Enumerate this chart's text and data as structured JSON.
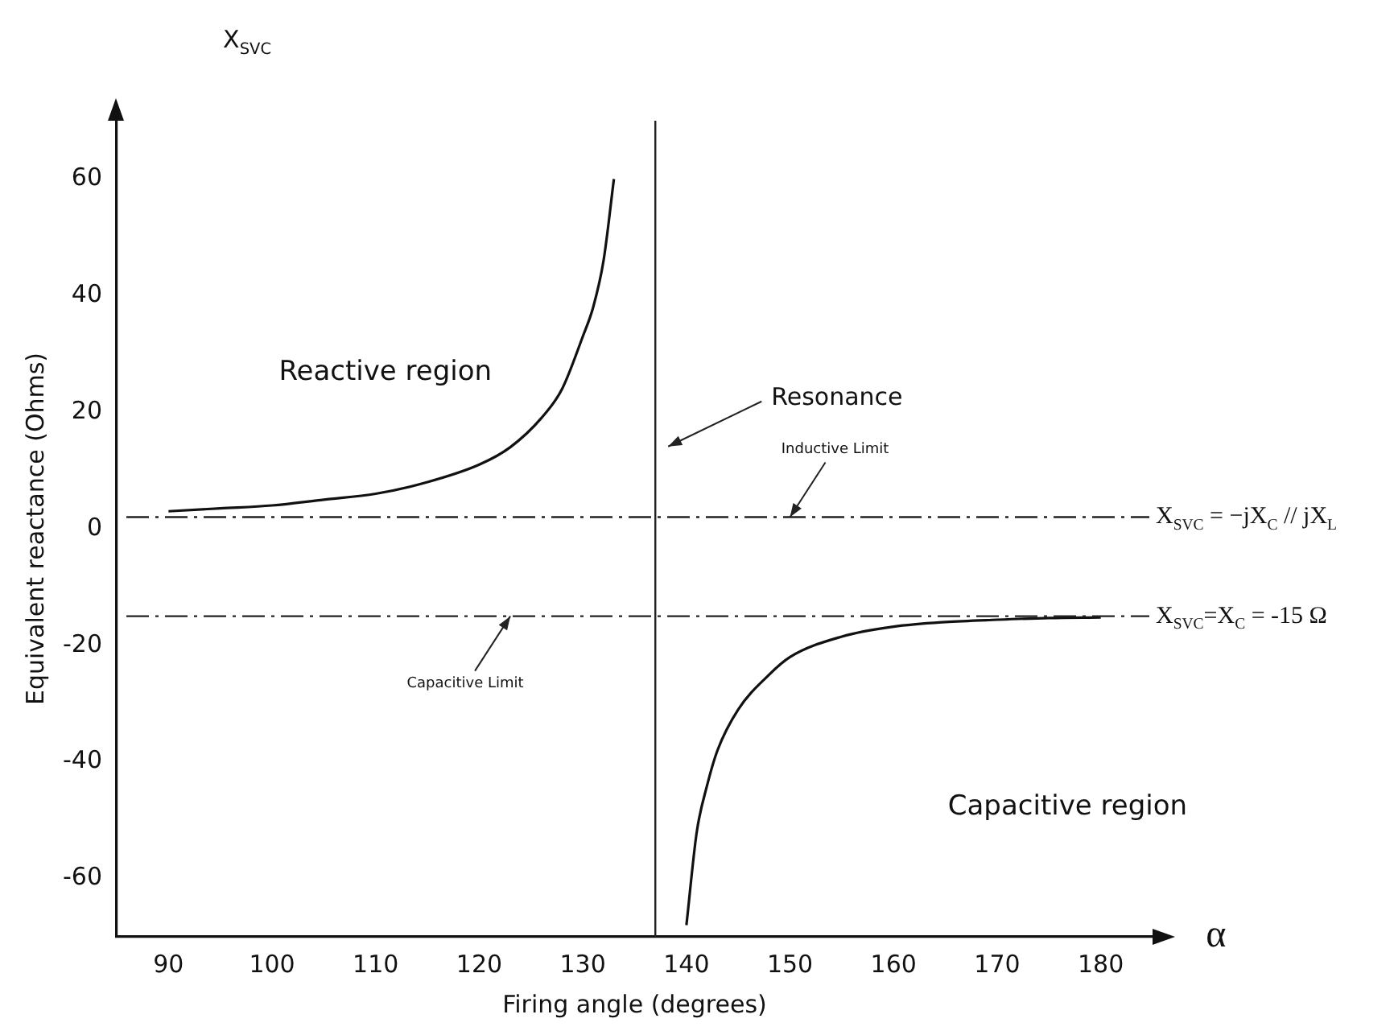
{
  "chart_data": {
    "type": "line",
    "xlabel": "Firing angle (degrees)",
    "ylabel": "Equivalent reactance (Ohms)",
    "xlim": [
      85,
      185
    ],
    "xticks": [
      90,
      100,
      110,
      120,
      130,
      140,
      150,
      160,
      170,
      180
    ],
    "ylim": [
      -70,
      70
    ],
    "yticks": [
      -60,
      -40,
      -20,
      0,
      20,
      40,
      60
    ],
    "grid": false,
    "legend": false,
    "marker": "none",
    "line_style": "solid",
    "series": [
      {
        "color": "#111111",
        "x": [
          90,
          95,
          100,
          105,
          110,
          115,
          120,
          123,
          126,
          128,
          130,
          131,
          132,
          133
        ],
        "values": [
          3,
          3.5,
          4,
          5,
          6,
          8,
          11,
          14,
          19,
          24,
          33,
          38,
          46,
          60
        ]
      },
      {
        "color": "#111111",
        "x": [
          140,
          141,
          142,
          143,
          145,
          148,
          150,
          155,
          160,
          165,
          170,
          175,
          180
        ],
        "values": [
          -68,
          -52,
          -44,
          -38,
          -31,
          -25,
          -22,
          -18.5,
          -16.8,
          -16,
          -15.6,
          -15.3,
          -15.2
        ]
      }
    ],
    "ref_lines": [
      {
        "axis": "y",
        "value": 2,
        "label": "X$_{SVC}$ = −jX$_{C}$ // jX$_{L}$",
        "line_style": "dashed",
        "color": "#222222"
      },
      {
        "axis": "y",
        "value": -15,
        "label": "X$_{SVC}$=X$_{C}$ = -15 Ω",
        "line_style": "dashed",
        "color": "#222222"
      },
      {
        "axis": "x",
        "value": 137,
        "label": "Resonance",
        "line_style": "solid",
        "color": "#222222"
      }
    ],
    "annotations": [
      "X$_{SVC}$",
      "α",
      "Reactive region",
      "Capacitive region",
      {
        "text": "Inductive Limit",
        "x": 150,
        "y": 2
      },
      {
        "text": "Capacitive Limit",
        "x": 123,
        "y": -15
      }
    ]
  }
}
